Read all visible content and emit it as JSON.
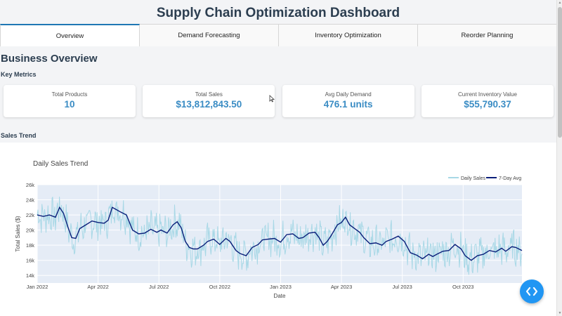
{
  "page": {
    "title": "Supply Chain Optimization Dashboard"
  },
  "tabs": [
    {
      "label": "Overview",
      "active": true
    },
    {
      "label": "Demand Forecasting",
      "active": false
    },
    {
      "label": "Inventory Optimization",
      "active": false
    },
    {
      "label": "Reorder Planning",
      "active": false
    }
  ],
  "overview": {
    "heading": "Business Overview",
    "key_metrics_heading": "Key Metrics",
    "sales_trend_heading": "Sales Trend"
  },
  "metrics": [
    {
      "label": "Total Products",
      "value": "10"
    },
    {
      "label": "Total Sales",
      "value": "$13,812,843.50"
    },
    {
      "label": "Avg Daily Demand",
      "value": "476.1 units"
    },
    {
      "label": "Current Inventory Value",
      "value": "$55,790.37"
    }
  ],
  "colors": {
    "accent": "#3a8cc4",
    "daily_line": "#a8d8e6",
    "avg_line": "#0a1f7a",
    "plot_bg": "#e5ecf6",
    "fab": "#2196f3"
  },
  "chart_data": {
    "type": "line",
    "title": "Daily Sales Trend",
    "xlabel": "Date",
    "ylabel": "Total Sales ($)",
    "ylim": [
      13000,
      26000
    ],
    "yticks": [
      14000,
      16000,
      18000,
      20000,
      22000,
      24000,
      26000
    ],
    "ytick_labels": [
      "14k",
      "16k",
      "18k",
      "20k",
      "22k",
      "24k",
      "26k"
    ],
    "xticks": [
      "Jan 2022",
      "Apr 2022",
      "Jul 2022",
      "Oct 2022",
      "Jan 2023",
      "Apr 2023",
      "Jul 2023",
      "Oct 2023"
    ],
    "x_range_months": [
      0,
      23.9
    ],
    "legend_position": "top-right",
    "series": [
      {
        "name": "Daily Sales",
        "style": "daily"
      },
      {
        "name": "7-Day Avg",
        "style": "avg",
        "points": [
          [
            0,
            22000
          ],
          [
            0.3,
            21800
          ],
          [
            0.6,
            22000
          ],
          [
            0.9,
            21700
          ],
          [
            1.1,
            23000
          ],
          [
            1.3,
            22200
          ],
          [
            1.5,
            20500
          ],
          [
            1.7,
            19000
          ],
          [
            1.9,
            18900
          ],
          [
            2.1,
            20200
          ],
          [
            2.4,
            20700
          ],
          [
            2.7,
            21200
          ],
          [
            3.0,
            21000
          ],
          [
            3.3,
            20900
          ],
          [
            3.5,
            21300
          ],
          [
            3.7,
            23000
          ],
          [
            3.9,
            22700
          ],
          [
            4.1,
            22400
          ],
          [
            4.4,
            22000
          ],
          [
            4.7,
            20000
          ],
          [
            5.0,
            19500
          ],
          [
            5.3,
            19600
          ],
          [
            5.6,
            20100
          ],
          [
            5.9,
            19700
          ],
          [
            6.1,
            20000
          ],
          [
            6.4,
            19600
          ],
          [
            6.7,
            20700
          ],
          [
            6.9,
            21100
          ],
          [
            7.1,
            20300
          ],
          [
            7.3,
            18500
          ],
          [
            7.5,
            17700
          ],
          [
            7.7,
            17500
          ],
          [
            7.9,
            17500
          ],
          [
            8.2,
            18000
          ],
          [
            8.4,
            18500
          ],
          [
            8.7,
            18800
          ],
          [
            9.0,
            18100
          ],
          [
            9.3,
            18900
          ],
          [
            9.5,
            18500
          ],
          [
            9.8,
            17300
          ],
          [
            10.0,
            16900
          ],
          [
            10.3,
            16600
          ],
          [
            10.6,
            17700
          ],
          [
            10.9,
            18100
          ],
          [
            11.1,
            18700
          ],
          [
            11.4,
            18800
          ],
          [
            11.7,
            18900
          ],
          [
            12.0,
            18400
          ],
          [
            12.3,
            19400
          ],
          [
            12.6,
            19500
          ],
          [
            12.9,
            18900
          ],
          [
            13.1,
            19000
          ],
          [
            13.4,
            19600
          ],
          [
            13.7,
            19700
          ],
          [
            13.9,
            19000
          ],
          [
            14.1,
            18000
          ],
          [
            14.3,
            18500
          ],
          [
            14.5,
            19300
          ],
          [
            14.8,
            20700
          ],
          [
            15.0,
            21000
          ],
          [
            15.2,
            21700
          ],
          [
            15.4,
            20700
          ],
          [
            15.6,
            20300
          ],
          [
            15.9,
            19700
          ],
          [
            16.1,
            19000
          ],
          [
            16.4,
            18200
          ],
          [
            16.7,
            18300
          ],
          [
            17.0,
            18000
          ],
          [
            17.2,
            18500
          ],
          [
            17.5,
            18800
          ],
          [
            17.8,
            19200
          ],
          [
            18.1,
            18500
          ],
          [
            18.4,
            17000
          ],
          [
            18.7,
            16700
          ],
          [
            19.0,
            16200
          ],
          [
            19.3,
            16800
          ],
          [
            19.5,
            16500
          ],
          [
            19.7,
            16800
          ],
          [
            20.0,
            17200
          ],
          [
            20.3,
            17300
          ],
          [
            20.6,
            18100
          ],
          [
            20.9,
            17500
          ],
          [
            21.1,
            16600
          ],
          [
            21.4,
            16000
          ],
          [
            21.7,
            16600
          ],
          [
            22.0,
            16800
          ],
          [
            22.3,
            17300
          ],
          [
            22.6,
            17100
          ],
          [
            22.9,
            17600
          ],
          [
            23.1,
            17200
          ],
          [
            23.4,
            17800
          ],
          [
            23.6,
            17700
          ],
          [
            23.9,
            17300
          ]
        ]
      }
    ]
  }
}
